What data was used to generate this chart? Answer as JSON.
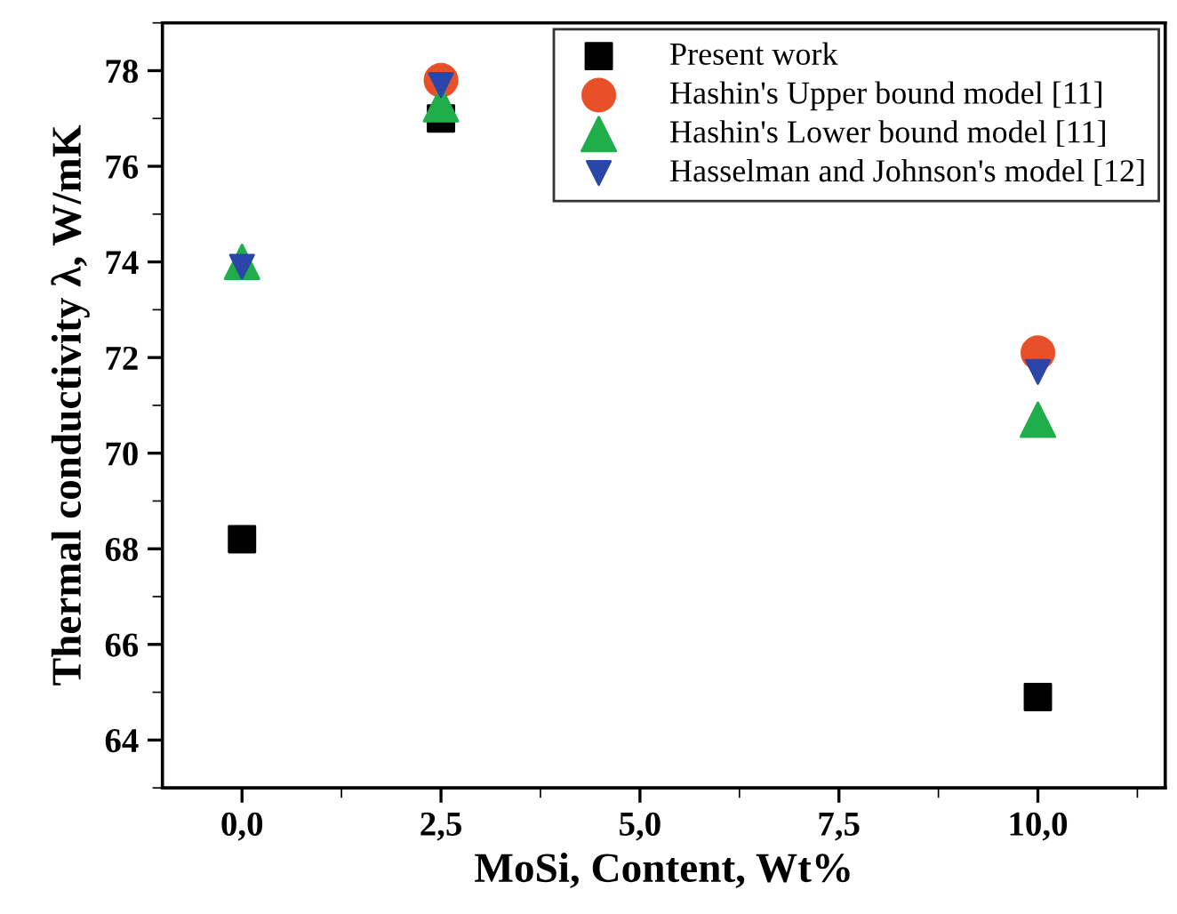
{
  "chart_data": {
    "type": "scatter",
    "xlabel": "MoSi, Content, Wt%",
    "ylabel": "Thermal conductivity λ, W/mK",
    "x": [
      0,
      2.5,
      10
    ],
    "series": [
      {
        "name": "Present work",
        "color": "#000000",
        "marker": "square",
        "values": [
          68.2,
          77.0,
          64.9
        ]
      },
      {
        "name": "Hashin's Upper bound model [11]",
        "color": "#e8502a",
        "marker": "circle",
        "values": [
          null,
          77.8,
          72.1
        ]
      },
      {
        "name": "Hashin's Lower bound model [11]",
        "color": "#1fae4a",
        "marker": "triangle",
        "values": [
          74.0,
          77.3,
          70.7
        ]
      },
      {
        "name": "Hasselman and Johnson's model [12]",
        "color": "#2a46a8",
        "marker": "triangle_down",
        "values": [
          73.9,
          77.7,
          71.7
        ]
      }
    ],
    "xlim": [
      -1.0,
      11.6
    ],
    "ylim": [
      63.0,
      79.0
    ],
    "xticks": [
      {
        "value": 0,
        "label": "0,0"
      },
      {
        "value": 2.5,
        "label": "2,5"
      },
      {
        "value": 5,
        "label": "5,0"
      },
      {
        "value": 7.5,
        "label": "7,5"
      },
      {
        "value": 10,
        "label": "10,0"
      }
    ],
    "yticks": [
      64,
      66,
      68,
      70,
      72,
      74,
      76,
      78
    ],
    "grid": false,
    "legend": "top right"
  }
}
